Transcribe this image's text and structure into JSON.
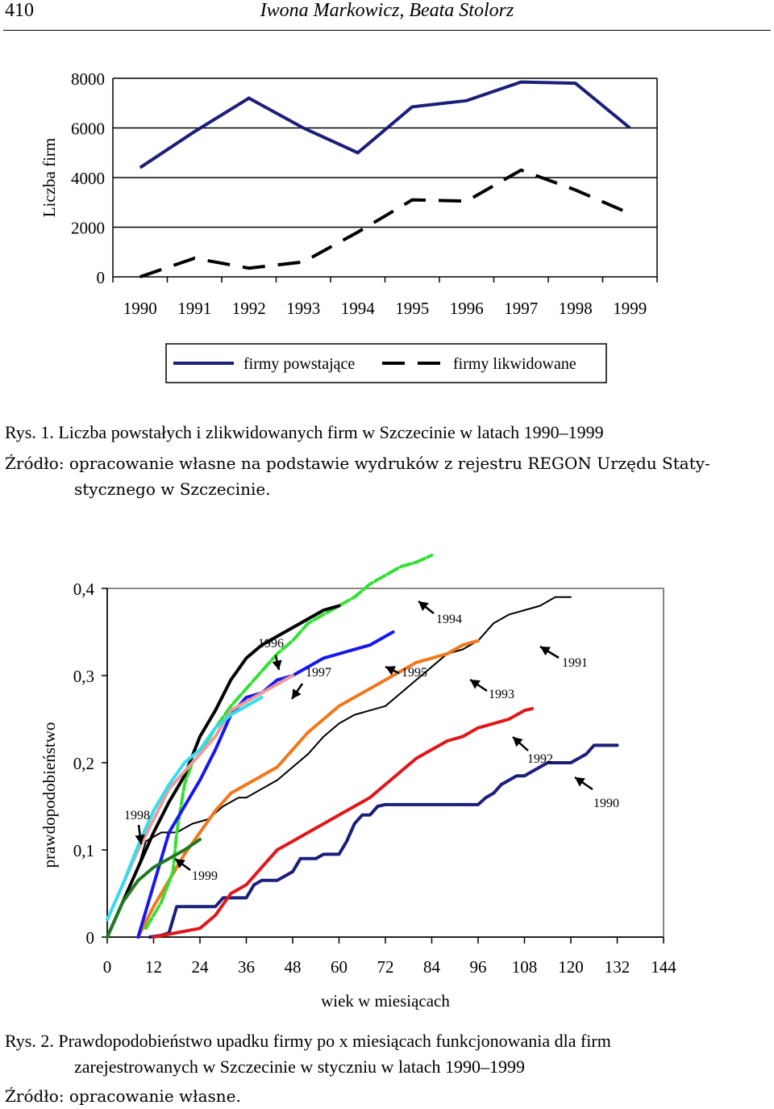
{
  "header": {
    "page_number": "410",
    "authors": "Iwona Markowicz, Beata Stolorz"
  },
  "figure1": {
    "caption": "Rys. 1. Liczba powstałych i zlikwidowanych firm w Szczecinie w latach 1990–1999",
    "source_line1": "Źródło: opracowanie własne na podstawie wydruków z rejestru REGON Urzędu Staty-",
    "source_line2": "stycznego w Szczecinie."
  },
  "figure2": {
    "caption_line1": "Rys. 2. Prawdopodobieństwo upadku firmy po x miesiącach funkcjonowania dla firm",
    "caption_line2": "zarejestrowanych w Szczecinie w styczniu w latach 1990–1999",
    "source": "Źródło: opracowanie własne."
  },
  "chart_data": [
    {
      "type": "line",
      "title": "",
      "ylabel": "Liczba firm",
      "xlabel": "",
      "ylim": [
        0,
        8000
      ],
      "yticks": [
        "0",
        "2000",
        "4000",
        "6000",
        "8000"
      ],
      "categories": [
        "1990",
        "1991",
        "1992",
        "1993",
        "1994",
        "1995",
        "1996",
        "1997",
        "1998",
        "1999"
      ],
      "grid": "horizontal",
      "legend": "bottom",
      "series": [
        {
          "name": "firmy powstające",
          "style": "solid",
          "color": "#1c1f7a",
          "values": [
            4400,
            5850,
            7200,
            6000,
            5000,
            6850,
            7100,
            7850,
            7800,
            6000
          ]
        },
        {
          "name": "firmy likwidowane",
          "style": "dashed",
          "color": "#000000",
          "values": [
            0,
            750,
            350,
            600,
            1800,
            3100,
            3050,
            4300,
            3500,
            2550
          ]
        }
      ]
    },
    {
      "type": "line",
      "title": "",
      "ylabel": "prawdopodobieństwo",
      "xlabel": "wiek w miesiącach",
      "xlim": [
        0,
        144
      ],
      "ylim": [
        0,
        0.4
      ],
      "xticks": [
        "0",
        "12",
        "24",
        "36",
        "48",
        "60",
        "72",
        "84",
        "96",
        "108",
        "120",
        "132",
        "144"
      ],
      "yticks": [
        "0",
        "0,1",
        "0,2",
        "0,3",
        "0,4"
      ],
      "legend": "none",
      "series": [
        {
          "name": "1990",
          "color": "#1c1f7a",
          "width": 4,
          "points": [
            [
              11,
              0
            ],
            [
              14,
              0.002
            ],
            [
              16,
              0.005
            ],
            [
              18,
              0.035
            ],
            [
              28,
              0.035
            ],
            [
              30,
              0.045
            ],
            [
              33,
              0.045
            ],
            [
              36,
              0.045
            ],
            [
              38,
              0.06
            ],
            [
              40,
              0.065
            ],
            [
              44,
              0.065
            ],
            [
              46,
              0.07
            ],
            [
              48,
              0.075
            ],
            [
              50,
              0.09
            ],
            [
              52,
              0.09
            ],
            [
              54,
              0.09
            ],
            [
              56,
              0.095
            ],
            [
              58,
              0.095
            ],
            [
              60,
              0.095
            ],
            [
              62,
              0.11
            ],
            [
              64,
              0.13
            ],
            [
              66,
              0.14
            ],
            [
              68,
              0.14
            ],
            [
              70,
              0.15
            ],
            [
              72,
              0.152
            ],
            [
              96,
              0.152
            ],
            [
              98,
              0.16
            ],
            [
              100,
              0.165
            ],
            [
              102,
              0.175
            ],
            [
              104,
              0.18
            ],
            [
              106,
              0.185
            ],
            [
              108,
              0.185
            ],
            [
              110,
              0.19
            ],
            [
              112,
              0.195
            ],
            [
              114,
              0.2
            ],
            [
              120,
              0.2
            ],
            [
              122,
              0.205
            ],
            [
              124,
              0.21
            ],
            [
              126,
              0.22
            ],
            [
              128,
              0.22
            ],
            [
              132,
              0.22
            ]
          ]
        },
        {
          "name": "1991",
          "color": "#000000",
          "width": 2,
          "points": [
            [
              0,
              0
            ],
            [
              4,
              0.04
            ],
            [
              8,
              0.08
            ],
            [
              10,
              0.11
            ],
            [
              14,
              0.12
            ],
            [
              18,
              0.12
            ],
            [
              22,
              0.13
            ],
            [
              26,
              0.135
            ],
            [
              30,
              0.15
            ],
            [
              34,
              0.16
            ],
            [
              36,
              0.16
            ],
            [
              40,
              0.17
            ],
            [
              44,
              0.18
            ],
            [
              48,
              0.195
            ],
            [
              52,
              0.21
            ],
            [
              56,
              0.23
            ],
            [
              60,
              0.245
            ],
            [
              64,
              0.255
            ],
            [
              68,
              0.26
            ],
            [
              72,
              0.265
            ],
            [
              76,
              0.28
            ],
            [
              80,
              0.295
            ],
            [
              84,
              0.31
            ],
            [
              88,
              0.325
            ],
            [
              92,
              0.33
            ],
            [
              96,
              0.34
            ],
            [
              100,
              0.36
            ],
            [
              104,
              0.37
            ],
            [
              108,
              0.375
            ],
            [
              112,
              0.38
            ],
            [
              116,
              0.39
            ],
            [
              120,
              0.39
            ]
          ]
        },
        {
          "name": "1992",
          "color": "#e0171a",
          "width": 4,
          "points": [
            [
              12,
              0
            ],
            [
              24,
              0.01
            ],
            [
              28,
              0.025
            ],
            [
              32,
              0.05
            ],
            [
              36,
              0.06
            ],
            [
              40,
              0.08
            ],
            [
              44,
              0.1
            ],
            [
              48,
              0.11
            ],
            [
              52,
              0.12
            ],
            [
              56,
              0.13
            ],
            [
              60,
              0.14
            ],
            [
              64,
              0.15
            ],
            [
              68,
              0.16
            ],
            [
              72,
              0.175
            ],
            [
              76,
              0.19
            ],
            [
              80,
              0.205
            ],
            [
              84,
              0.215
            ],
            [
              88,
              0.225
            ],
            [
              92,
              0.23
            ],
            [
              96,
              0.24
            ],
            [
              100,
              0.245
            ],
            [
              104,
              0.25
            ],
            [
              108,
              0.26
            ],
            [
              110,
              0.262
            ]
          ]
        },
        {
          "name": "1993",
          "color": "#f0781c",
          "width": 4,
          "points": [
            [
              8,
              0
            ],
            [
              12,
              0.035
            ],
            [
              16,
              0.065
            ],
            [
              20,
              0.095
            ],
            [
              24,
              0.12
            ],
            [
              28,
              0.145
            ],
            [
              32,
              0.165
            ],
            [
              36,
              0.175
            ],
            [
              40,
              0.185
            ],
            [
              44,
              0.195
            ],
            [
              48,
              0.215
            ],
            [
              52,
              0.235
            ],
            [
              56,
              0.25
            ],
            [
              60,
              0.265
            ],
            [
              64,
              0.275
            ],
            [
              68,
              0.285
            ],
            [
              72,
              0.295
            ],
            [
              76,
              0.305
            ],
            [
              80,
              0.315
            ],
            [
              84,
              0.32
            ],
            [
              88,
              0.325
            ],
            [
              92,
              0.335
            ],
            [
              96,
              0.34
            ]
          ]
        },
        {
          "name": "1994",
          "color": "#33e033",
          "width": 4,
          "points": [
            [
              10,
              0.01
            ],
            [
              14,
              0.04
            ],
            [
              17,
              0.075
            ],
            [
              18,
              0.12
            ],
            [
              20,
              0.175
            ],
            [
              22,
              0.2
            ],
            [
              24,
              0.21
            ],
            [
              28,
              0.24
            ],
            [
              32,
              0.265
            ],
            [
              36,
              0.285
            ],
            [
              40,
              0.305
            ],
            [
              44,
              0.325
            ],
            [
              48,
              0.34
            ],
            [
              52,
              0.36
            ],
            [
              56,
              0.37
            ],
            [
              60,
              0.38
            ],
            [
              64,
              0.39
            ],
            [
              68,
              0.405
            ],
            [
              72,
              0.415
            ],
            [
              76,
              0.425
            ],
            [
              80,
              0.43
            ],
            [
              84,
              0.438
            ]
          ]
        },
        {
          "name": "1995",
          "color": "#1818ee",
          "width": 4,
          "points": [
            [
              8,
              0
            ],
            [
              12,
              0.06
            ],
            [
              16,
              0.12
            ],
            [
              20,
              0.15
            ],
            [
              24,
              0.18
            ],
            [
              28,
              0.215
            ],
            [
              32,
              0.255
            ],
            [
              36,
              0.275
            ],
            [
              40,
              0.28
            ],
            [
              44,
              0.295
            ],
            [
              48,
              0.3
            ],
            [
              52,
              0.31
            ],
            [
              56,
              0.32
            ],
            [
              60,
              0.325
            ],
            [
              64,
              0.33
            ],
            [
              68,
              0.335
            ],
            [
              72,
              0.345
            ],
            [
              74,
              0.35
            ]
          ]
        },
        {
          "name": "1996",
          "color": "#000000",
          "width": 4,
          "points": [
            [
              0,
              0
            ],
            [
              4,
              0.04
            ],
            [
              8,
              0.08
            ],
            [
              12,
              0.12
            ],
            [
              16,
              0.155
            ],
            [
              20,
              0.185
            ],
            [
              24,
              0.23
            ],
            [
              28,
              0.26
            ],
            [
              32,
              0.295
            ],
            [
              36,
              0.32
            ],
            [
              40,
              0.335
            ],
            [
              44,
              0.345
            ],
            [
              48,
              0.355
            ],
            [
              52,
              0.365
            ],
            [
              56,
              0.375
            ],
            [
              60,
              0.38
            ]
          ]
        },
        {
          "name": "1997",
          "color": "#ee9999",
          "width": 4,
          "points": [
            [
              0,
              0.02
            ],
            [
              4,
              0.06
            ],
            [
              8,
              0.1
            ],
            [
              12,
              0.135
            ],
            [
              16,
              0.17
            ],
            [
              20,
              0.19
            ],
            [
              24,
              0.21
            ],
            [
              28,
              0.23
            ],
            [
              32,
              0.26
            ],
            [
              36,
              0.27
            ],
            [
              40,
              0.28
            ],
            [
              44,
              0.29
            ],
            [
              48,
              0.3
            ]
          ]
        },
        {
          "name": "1998",
          "color": "#33ddee",
          "width": 4,
          "points": [
            [
              0,
              0.02
            ],
            [
              4,
              0.06
            ],
            [
              8,
              0.105
            ],
            [
              12,
              0.145
            ],
            [
              16,
              0.175
            ],
            [
              20,
              0.2
            ],
            [
              24,
              0.215
            ],
            [
              28,
              0.24
            ],
            [
              32,
              0.255
            ],
            [
              36,
              0.265
            ],
            [
              40,
              0.275
            ]
          ]
        },
        {
          "name": "1999",
          "color": "#1f7a1f",
          "width": 4,
          "points": [
            [
              0,
              0
            ],
            [
              4,
              0.04
            ],
            [
              8,
              0.065
            ],
            [
              12,
              0.08
            ],
            [
              16,
              0.09
            ],
            [
              20,
              0.1
            ],
            [
              24,
              0.112
            ]
          ]
        }
      ],
      "annotations": [
        "1990",
        "1991",
        "1992",
        "1993",
        "1994",
        "1995",
        "1996",
        "1997",
        "1998",
        "1999"
      ]
    }
  ]
}
